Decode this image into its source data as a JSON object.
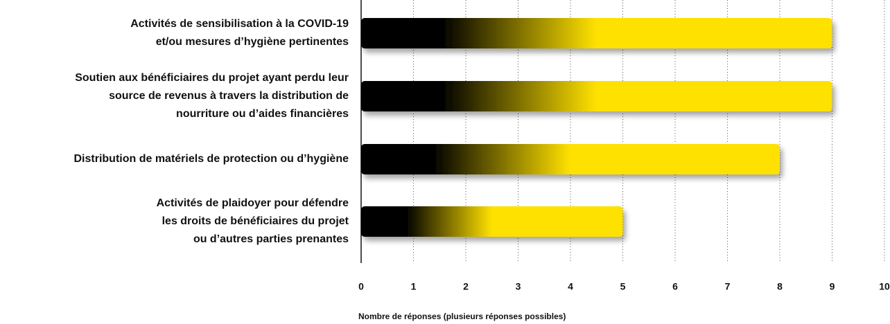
{
  "chart_data": {
    "type": "barh",
    "categories": [
      "Activités de sensibilisation à la COVID-19\net/ou mesures d’hygiène pertinentes",
      "Soutien aux bénéficiaires du projet ayant perdu leur\nsource de revenus à travers la distribution de\nnourriture ou d’aides financières",
      "Distribution de matériels de protection ou d’hygiène",
      "Activités de plaidoyer pour défendre\nles droits de bénéficiaires du projet\nou d’autres parties prenantes"
    ],
    "values": [
      9,
      9,
      8,
      5
    ],
    "color": "#ffe100",
    "xlabel": "Nombre de réponses (plusieurs réponses possibles)",
    "xlim": [
      0,
      10
    ],
    "xticks": [
      0,
      1,
      2,
      3,
      4,
      5,
      6,
      7,
      8,
      9,
      10
    ],
    "grid": true
  }
}
